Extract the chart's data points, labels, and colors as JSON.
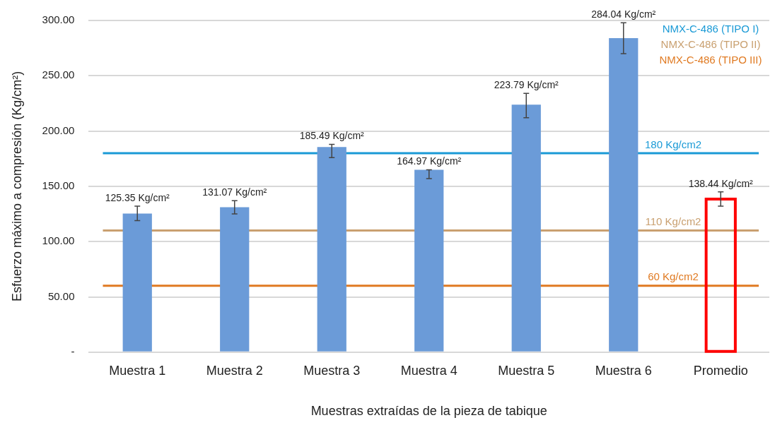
{
  "chart_data": {
    "type": "bar",
    "categories": [
      "Muestra 1",
      "Muestra 2",
      "Muestra 3",
      "Muestra 4",
      "Muestra 5",
      "Muestra 6",
      "Promedio"
    ],
    "values": [
      125.35,
      131.07,
      185.49,
      164.97,
      223.79,
      284.04,
      138.44
    ],
    "colors": [
      "#6b9bd8",
      "#6b9bd8",
      "#6b9bd8",
      "#6b9bd8",
      "#6b9bd8",
      "#6b9bd8",
      "#ff0000"
    ],
    "errors": [
      [
        119,
        132
      ],
      [
        125,
        137
      ],
      [
        176,
        188
      ],
      [
        157,
        165
      ],
      [
        212,
        234
      ],
      [
        270,
        298
      ],
      [
        132,
        145
      ]
    ],
    "value_labels": [
      "125.35 Kg/cm²",
      "131.07 Kg/cm²",
      "185.49 Kg/cm²",
      "164.97 Kg/cm²",
      "223.79 Kg/cm²",
      "284.04 Kg/cm²",
      "138.44 Kg/cm²"
    ],
    "xlabel": "Muestras extraídas de la pieza de tabique",
    "ylabel": "Esfuerzo máximo a compresión (Kg/cm²)",
    "ylim": [
      0,
      300
    ],
    "yticks": [
      {
        "value": 0,
        "label": "-"
      },
      {
        "value": 50,
        "label": "50.00"
      },
      {
        "value": 100,
        "label": "100.00"
      },
      {
        "value": 150,
        "label": "150.00"
      },
      {
        "value": 200,
        "label": "200.00"
      },
      {
        "value": 250,
        "label": "250.00"
      },
      {
        "value": 300,
        "label": "300.00"
      }
    ],
    "grid": "y",
    "legend": false,
    "ref_lines": [
      {
        "axis": "y",
        "value": 180,
        "label": "180 Kg/cm2",
        "color": "#1a9ad6"
      },
      {
        "axis": "y",
        "value": 110,
        "label": "110 Kg/cm2",
        "color": "#c9a070"
      },
      {
        "axis": "y",
        "value": 60,
        "label": "60 Kg/cm2",
        "color": "#e07a22"
      }
    ],
    "annotations": [
      "NMX-C-486 (TIPO I)",
      "NMX-C-486 (TIPO II)",
      "NMX-C-486 (TIPO III)"
    ]
  }
}
